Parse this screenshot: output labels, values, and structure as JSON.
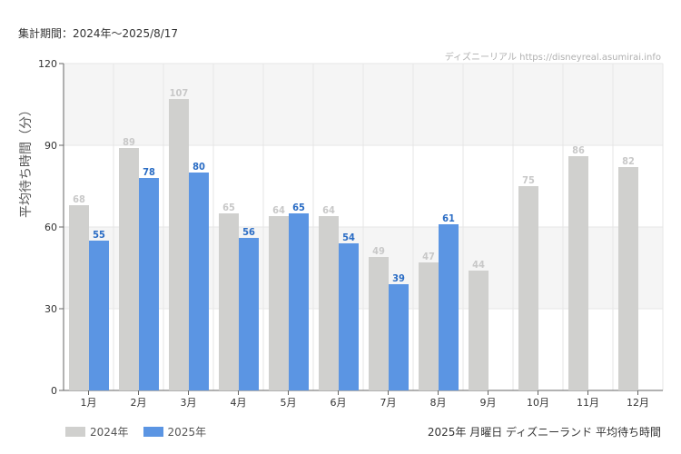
{
  "header": {
    "period_text": "集計期間：2024年～2025/8/17",
    "credit_text": "ディズニーリアル https://disneyreal.asumirai.info"
  },
  "footer": {
    "subtitle": "2025年 月曜日 ディズニーランド 平均待ち時間"
  },
  "colors": {
    "series_2024": "#d0d0ce",
    "series_2025": "#5b95e3",
    "label_2024": "#c8c8c8",
    "label_2025": "#2a6cc4",
    "band": "#f5f5f5",
    "grid": "#e6e6e6"
  },
  "chart_data": {
    "type": "bar",
    "categories": [
      "1月",
      "2月",
      "3月",
      "4月",
      "5月",
      "6月",
      "7月",
      "8月",
      "9月",
      "10月",
      "11月",
      "12月"
    ],
    "series": [
      {
        "name": "2024年",
        "values": [
          68,
          89,
          107,
          65,
          64,
          64,
          49,
          47,
          44,
          75,
          86,
          82
        ]
      },
      {
        "name": "2025年",
        "values": [
          55,
          78,
          80,
          56,
          65,
          54,
          39,
          61,
          null,
          null,
          null,
          null
        ]
      }
    ],
    "ylabel": "平均待ち時間（分）",
    "ylim": [
      0,
      120
    ],
    "yticks": [
      0,
      30,
      60,
      90,
      120
    ],
    "legend_position": "bottom-left",
    "grid": true
  }
}
